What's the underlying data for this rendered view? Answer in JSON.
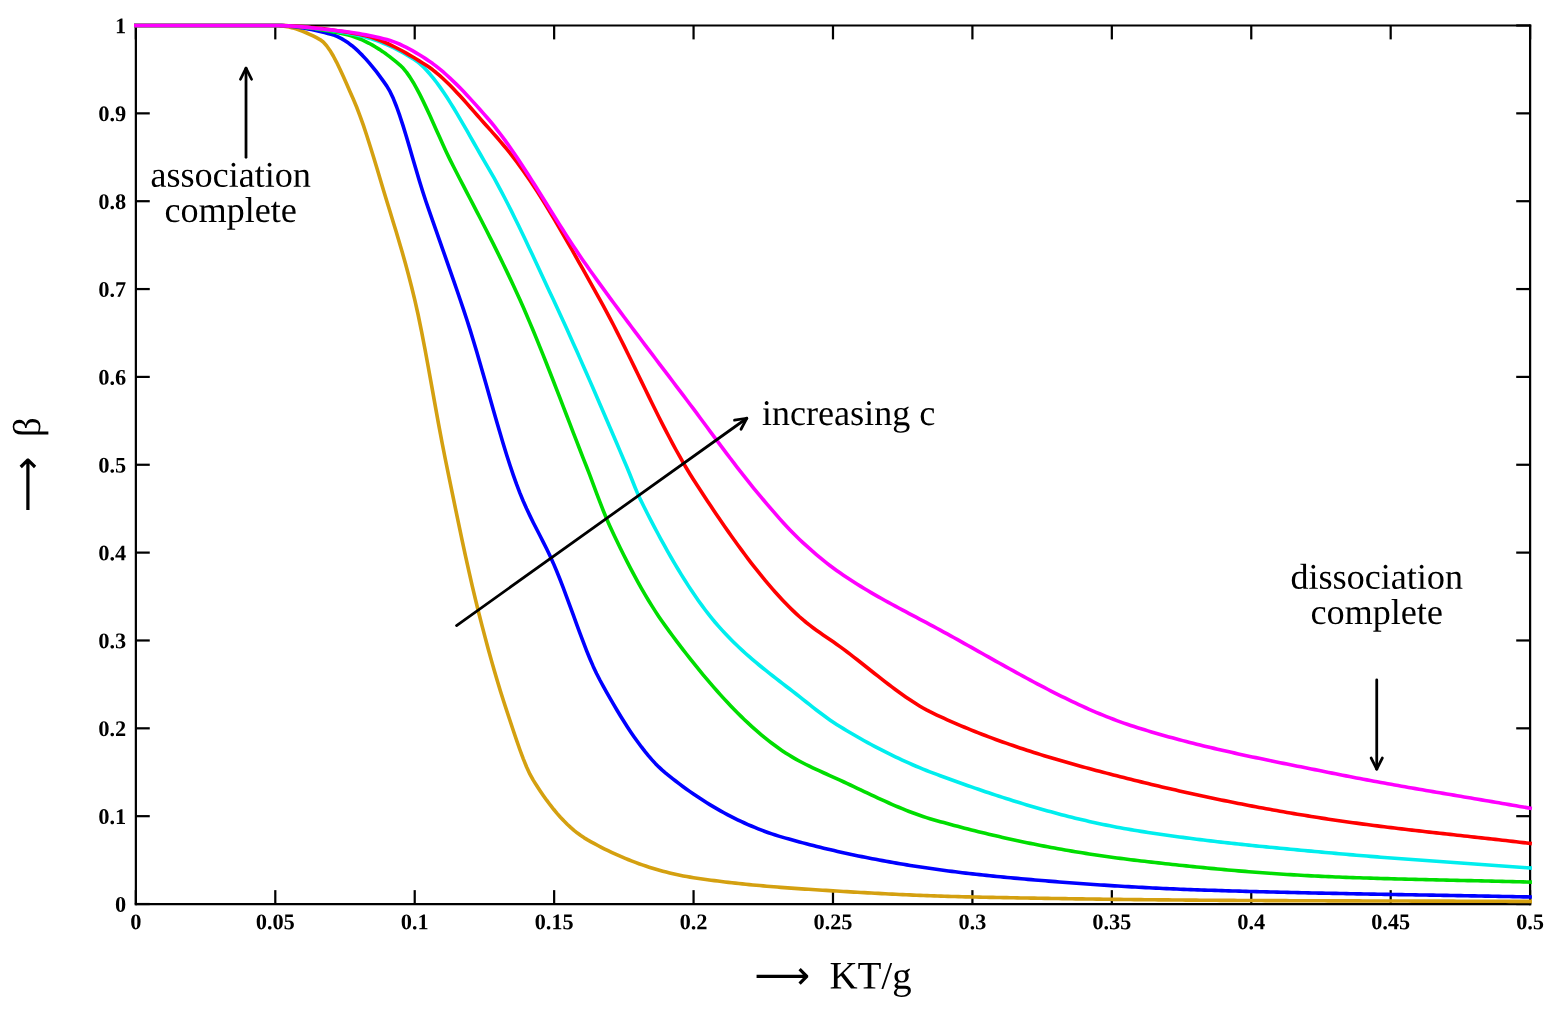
{
  "chart_data": {
    "type": "line",
    "xlabel": "⟶  KT/g",
    "ylabel": "⟶  β",
    "xlim": [
      0,
      0.5
    ],
    "ylim": [
      0,
      1
    ],
    "xticks": [
      0,
      0.05,
      0.1,
      0.15,
      0.2,
      0.25,
      0.3,
      0.35,
      0.4,
      0.45,
      0.5
    ],
    "yticks": [
      0,
      0.1,
      0.2,
      0.3,
      0.4,
      0.5,
      0.6,
      0.7,
      0.8,
      0.9,
      1
    ],
    "grid": false,
    "legend": false,
    "marker": "none",
    "line_style": "solid",
    "series": [
      {
        "color": "#d4a010",
        "x": [
          0,
          0.05,
          0.066,
          0.078,
          0.09,
          0.1,
          0.111,
          0.123,
          0.133,
          0.1425,
          0.162,
          0.2,
          0.25,
          0.3,
          0.4,
          0.5
        ],
        "values": [
          1,
          1,
          0.984,
          0.916,
          0.8,
          0.688,
          0.506,
          0.331,
          0.22,
          0.141,
          0.073,
          0.03,
          0.015,
          0.008,
          0.004,
          0.003
        ]
      },
      {
        "color": "#0000ff",
        "x": [
          0,
          0.05,
          0.07,
          0.09,
          0.104,
          0.1187,
          0.1377,
          0.1497,
          0.1664,
          0.19,
          0.233,
          0.31,
          0.382,
          0.5
        ],
        "values": [
          1,
          1,
          0.99,
          0.931,
          0.8,
          0.665,
          0.468,
          0.388,
          0.255,
          0.149,
          0.075,
          0.031,
          0.016,
          0.008
        ]
      },
      {
        "color": "#00dd00",
        "x": [
          0,
          0.05,
          0.075,
          0.0947,
          0.1138,
          0.1377,
          0.1616,
          0.17,
          0.19,
          0.233,
          0.2525,
          0.286,
          0.358,
          0.429,
          0.5
        ],
        "values": [
          1,
          1,
          0.99,
          0.955,
          0.84,
          0.688,
          0.498,
          0.43,
          0.316,
          0.172,
          0.141,
          0.096,
          0.05,
          0.031,
          0.025
        ]
      },
      {
        "color": "#00eeee",
        "x": [
          0,
          0.05,
          0.078,
          0.0995,
          0.126,
          0.1497,
          0.176,
          0.181,
          0.209,
          0.238,
          0.2525,
          0.286,
          0.358,
          0.429,
          0.5
        ],
        "values": [
          1,
          1,
          0.99,
          0.962,
          0.84,
          0.688,
          0.498,
          0.46,
          0.316,
          0.236,
          0.202,
          0.149,
          0.084,
          0.058,
          0.041
        ]
      },
      {
        "color": "#ff0000",
        "x": [
          0,
          0.05,
          0.08,
          0.104,
          0.126,
          0.1377,
          0.1664,
          0.2,
          0.238,
          0.2525,
          0.286,
          0.358,
          0.429,
          0.5
        ],
        "values": [
          1,
          1,
          0.99,
          0.955,
          0.885,
          0.84,
          0.688,
          0.483,
          0.327,
          0.293,
          0.217,
          0.141,
          0.096,
          0.069
        ]
      },
      {
        "color": "#ff00ff",
        "x": [
          0,
          0.05,
          0.07,
          0.09,
          0.104,
          0.126,
          0.1616,
          0.1975,
          0.224,
          0.238,
          0.2525,
          0.286,
          0.358,
          0.429,
          0.5
        ],
        "values": [
          1,
          1,
          0.995,
          0.984,
          0.962,
          0.895,
          0.727,
          0.574,
          0.464,
          0.415,
          0.377,
          0.316,
          0.202,
          0.149,
          0.109
        ]
      }
    ],
    "annotations": [
      "association\ncomplete",
      "increasing c",
      "dissociation\ncomplete"
    ]
  }
}
